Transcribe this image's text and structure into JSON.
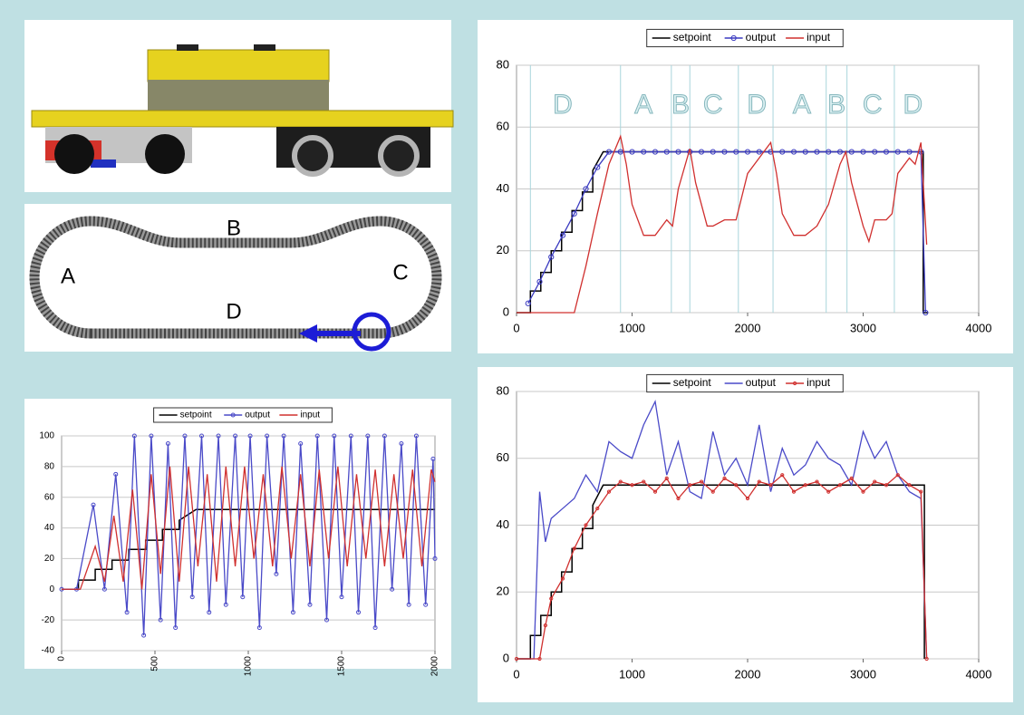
{
  "track": {
    "labels": [
      "A",
      "B",
      "C",
      "D"
    ]
  },
  "chart_data": [
    {
      "type": "line",
      "xlim": [
        0,
        4000
      ],
      "ylim": [
        0,
        80
      ],
      "xticks": [
        0,
        1000,
        2000,
        3000,
        4000
      ],
      "yticks": [
        0,
        20,
        40,
        60,
        80
      ],
      "grid": true,
      "legend": "top",
      "vlines": [
        120,
        900,
        1340,
        1500,
        1920,
        2220,
        2680,
        2860,
        3270
      ],
      "annotations": [
        {
          "text": "D",
          "x": 400
        },
        {
          "text": "A",
          "x": 1100
        },
        {
          "text": "B",
          "x": 1420
        },
        {
          "text": "C",
          "x": 1700
        },
        {
          "text": "D",
          "x": 2080
        },
        {
          "text": "A",
          "x": 2470
        },
        {
          "text": "B",
          "x": 2770
        },
        {
          "text": "C",
          "x": 3080
        },
        {
          "text": "D",
          "x": 3430
        }
      ],
      "series": [
        {
          "name": "setpoint",
          "color": "#000000",
          "markers": false,
          "x": [
            0,
            120,
            120,
            210,
            210,
            300,
            300,
            390,
            390,
            480,
            480,
            570,
            570,
            660,
            660,
            750,
            3520,
            3520,
            3560
          ],
          "values": [
            0,
            0,
            7,
            7,
            13,
            13,
            20,
            20,
            26,
            26,
            33,
            33,
            39,
            39,
            46,
            52,
            52,
            0,
            0
          ]
        },
        {
          "name": "output",
          "color": "#3a3ac0",
          "markers": true,
          "x": [
            100,
            200,
            300,
            400,
            500,
            600,
            700,
            800,
            900,
            1000,
            1100,
            1200,
            1300,
            1400,
            1500,
            1600,
            1700,
            1800,
            1900,
            2000,
            2100,
            2200,
            2300,
            2400,
            2500,
            2600,
            2700,
            2800,
            2900,
            3000,
            3100,
            3200,
            3300,
            3400,
            3500,
            3540
          ],
          "values": [
            3,
            10,
            18,
            25,
            32,
            40,
            47,
            52,
            52,
            52,
            52,
            52,
            52,
            52,
            52,
            52,
            52,
            52,
            52,
            52,
            52,
            52,
            52,
            52,
            52,
            52,
            52,
            52,
            52,
            52,
            52,
            52,
            52,
            52,
            52,
            0
          ]
        },
        {
          "name": "input",
          "color": "#d0302f",
          "markers": false,
          "x": [
            0,
            500,
            600,
            700,
            800,
            900,
            950,
            1000,
            1100,
            1200,
            1300,
            1350,
            1400,
            1500,
            1550,
            1650,
            1700,
            1800,
            1900,
            2000,
            2100,
            2200,
            2250,
            2300,
            2400,
            2500,
            2600,
            2700,
            2800,
            2850,
            2900,
            3000,
            3050,
            3100,
            3200,
            3250,
            3300,
            3400,
            3450,
            3500,
            3550
          ],
          "values": [
            0,
            0,
            15,
            32,
            48,
            57,
            48,
            35,
            25,
            25,
            30,
            28,
            40,
            53,
            42,
            28,
            28,
            30,
            30,
            45,
            50,
            55,
            45,
            32,
            25,
            25,
            28,
            35,
            48,
            52,
            42,
            28,
            23,
            30,
            30,
            32,
            45,
            50,
            48,
            55,
            22
          ]
        }
      ]
    },
    {
      "type": "line",
      "xlim": [
        0,
        2000
      ],
      "ylim": [
        -40,
        100
      ],
      "xticks": [
        0,
        500,
        1000,
        1500,
        2000
      ],
      "yticks": [
        -40,
        -20,
        0,
        20,
        40,
        60,
        80,
        100
      ],
      "grid": true,
      "legend": "top",
      "xtick_rotation": -90,
      "series": [
        {
          "name": "setpoint",
          "color": "#000000",
          "markers": false,
          "x": [
            0,
            90,
            90,
            180,
            180,
            270,
            270,
            360,
            360,
            450,
            450,
            540,
            540,
            630,
            630,
            720,
            2000
          ],
          "values": [
            0,
            0,
            6,
            6,
            13,
            13,
            19,
            19,
            26,
            26,
            32,
            32,
            39,
            39,
            45,
            52,
            52
          ]
        },
        {
          "name": "output",
          "color": "#4a4ac8",
          "markers": true,
          "x": [
            0,
            80,
            170,
            230,
            290,
            350,
            390,
            440,
            480,
            530,
            570,
            610,
            660,
            700,
            750,
            790,
            840,
            880,
            930,
            970,
            1010,
            1060,
            1100,
            1150,
            1190,
            1240,
            1280,
            1330,
            1370,
            1420,
            1460,
            1500,
            1550,
            1590,
            1640,
            1680,
            1730,
            1770,
            1820,
            1860,
            1900,
            1950,
            1990,
            2000
          ],
          "values": [
            0,
            0,
            55,
            0,
            75,
            -15,
            100,
            -30,
            100,
            -20,
            95,
            -25,
            100,
            -5,
            100,
            -15,
            100,
            -10,
            100,
            -5,
            100,
            -25,
            100,
            10,
            100,
            -15,
            95,
            -10,
            100,
            -20,
            100,
            -5,
            100,
            -15,
            100,
            -25,
            100,
            0,
            95,
            -10,
            100,
            -10,
            85,
            20
          ]
        },
        {
          "name": "input",
          "color": "#d0302f",
          "markers": false,
          "x": [
            0,
            100,
            180,
            230,
            280,
            330,
            380,
            430,
            480,
            530,
            580,
            630,
            680,
            730,
            780,
            830,
            880,
            930,
            980,
            1030,
            1080,
            1130,
            1180,
            1230,
            1280,
            1330,
            1380,
            1430,
            1480,
            1530,
            1580,
            1630,
            1680,
            1730,
            1780,
            1830,
            1880,
            1930,
            1980,
            2000
          ],
          "values": [
            0,
            0,
            28,
            5,
            48,
            5,
            65,
            0,
            75,
            10,
            80,
            5,
            80,
            15,
            75,
            5,
            80,
            15,
            80,
            20,
            75,
            15,
            80,
            20,
            75,
            15,
            78,
            20,
            80,
            15,
            75,
            20,
            78,
            15,
            75,
            20,
            78,
            15,
            78,
            70
          ]
        }
      ]
    },
    {
      "type": "line",
      "xlim": [
        0,
        4000
      ],
      "ylim": [
        0,
        80
      ],
      "xticks": [
        0,
        1000,
        2000,
        3000,
        4000
      ],
      "yticks": [
        0,
        20,
        40,
        60,
        80
      ],
      "grid": true,
      "legend": "top",
      "series": [
        {
          "name": "setpoint",
          "color": "#000000",
          "markers": false,
          "x": [
            0,
            120,
            120,
            210,
            210,
            300,
            300,
            390,
            390,
            480,
            480,
            570,
            570,
            660,
            660,
            750,
            3530,
            3530
          ],
          "values": [
            0,
            0,
            7,
            7,
            13,
            13,
            20,
            20,
            26,
            26,
            33,
            33,
            39,
            39,
            46,
            52,
            52,
            0
          ]
        },
        {
          "name": "output",
          "color": "#4a4ac8",
          "markers": false,
          "x": [
            0,
            150,
            200,
            250,
            300,
            400,
            500,
            600,
            700,
            800,
            900,
            1000,
            1100,
            1200,
            1300,
            1400,
            1500,
            1600,
            1700,
            1800,
            1900,
            2000,
            2100,
            2200,
            2300,
            2400,
            2500,
            2600,
            2700,
            2800,
            2900,
            3000,
            3100,
            3200,
            3300,
            3400,
            3500,
            3550
          ],
          "values": [
            0,
            0,
            50,
            35,
            42,
            45,
            48,
            55,
            50,
            65,
            62,
            60,
            70,
            77,
            55,
            65,
            50,
            48,
            68,
            55,
            60,
            52,
            70,
            50,
            63,
            55,
            58,
            65,
            60,
            58,
            52,
            68,
            60,
            65,
            55,
            50,
            48,
            0
          ]
        },
        {
          "name": "input",
          "color": "#d0302f",
          "markers": true,
          "x": [
            0,
            200,
            250,
            300,
            400,
            500,
            600,
            700,
            800,
            900,
            1000,
            1100,
            1200,
            1300,
            1400,
            1500,
            1600,
            1700,
            1800,
            1900,
            2000,
            2100,
            2200,
            2300,
            2400,
            2500,
            2600,
            2700,
            2800,
            2900,
            3000,
            3100,
            3200,
            3300,
            3400,
            3500,
            3550
          ],
          "values": [
            0,
            0,
            10,
            18,
            24,
            33,
            40,
            45,
            50,
            53,
            52,
            53,
            50,
            54,
            48,
            52,
            53,
            50,
            54,
            52,
            48,
            53,
            52,
            55,
            50,
            52,
            53,
            50,
            52,
            54,
            50,
            53,
            52,
            55,
            52,
            50,
            0
          ]
        }
      ]
    }
  ]
}
